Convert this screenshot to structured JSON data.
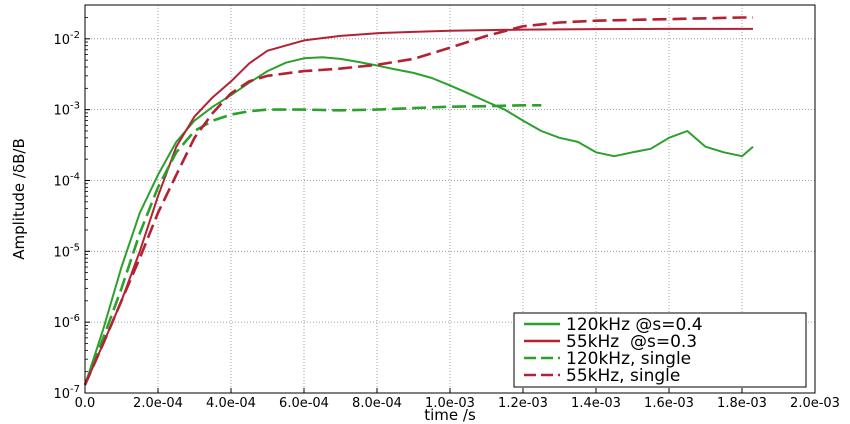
{
  "chart_data": {
    "type": "line",
    "xlabel": "time /s",
    "ylabel": "Amplitude /δB/B",
    "xlim": [
      0.0,
      0.002
    ],
    "ylim": [
      1e-07,
      0.03
    ],
    "yscale": "log",
    "grid": true,
    "legend_position": "bottom-right",
    "x_ticks": [
      "0.0",
      "2.0e-04",
      "4.0e-04",
      "6.0e-04",
      "8.0e-04",
      "1.0e-03",
      "1.2e-03",
      "1.4e-03",
      "1.6e-03",
      "1.8e-03",
      "2.0e-03"
    ],
    "x_tick_values": [
      0.0,
      0.0002,
      0.0004,
      0.0006,
      0.0008,
      0.001,
      0.0012,
      0.0014,
      0.0016,
      0.0018,
      0.002
    ],
    "y_ticks": [
      {
        "base": "10",
        "exp": "-7",
        "value": 1e-07
      },
      {
        "base": "10",
        "exp": "-6",
        "value": 1e-06
      },
      {
        "base": "10",
        "exp": "-5",
        "value": 1e-05
      },
      {
        "base": "10",
        "exp": "-4",
        "value": 0.0001
      },
      {
        "base": "10",
        "exp": "-3",
        "value": 0.001
      },
      {
        "base": "10",
        "exp": "-2",
        "value": 0.01
      }
    ],
    "series": [
      {
        "name": "120kHz @s=0.4",
        "color": "#2ca02c",
        "style": "solid",
        "x": [
          0.0,
          5e-05,
          0.0001,
          0.00015,
          0.0002,
          0.00025,
          0.0003,
          0.00035,
          0.0004,
          0.00045,
          0.0005,
          0.00055,
          0.0006,
          0.00065,
          0.0007,
          0.00075,
          0.0008,
          0.00085,
          0.0009,
          0.00095,
          0.001,
          0.00105,
          0.0011,
          0.00115,
          0.0012,
          0.00125,
          0.0013,
          0.00135,
          0.0014,
          0.00145,
          0.0015,
          0.00155,
          0.0016,
          0.00165,
          0.0017,
          0.00175,
          0.0018,
          0.00183
        ],
        "y": [
          1.3e-07,
          8e-07,
          6e-06,
          3.5e-05,
          0.00012,
          0.00035,
          0.0007,
          0.0011,
          0.0016,
          0.0024,
          0.0035,
          0.0046,
          0.0053,
          0.0055,
          0.0052,
          0.0047,
          0.0042,
          0.0037,
          0.0033,
          0.0028,
          0.0022,
          0.0017,
          0.0013,
          0.001,
          0.0007,
          0.0005,
          0.0004,
          0.00035,
          0.00025,
          0.00022,
          0.00025,
          0.00028,
          0.0004,
          0.0005,
          0.0003,
          0.00025,
          0.00022,
          0.0003
        ]
      },
      {
        "name": "55kHz  @s=0.3",
        "color": "#b22234",
        "style": "solid",
        "x": [
          0.0,
          5e-05,
          0.0001,
          0.00015,
          0.0002,
          0.00025,
          0.0003,
          0.00035,
          0.0004,
          0.00045,
          0.0005,
          0.0006,
          0.0007,
          0.0008,
          0.0009,
          0.001,
          0.0012,
          0.0014,
          0.0016,
          0.0018,
          0.00183
        ],
        "y": [
          1.3e-07,
          5e-07,
          2e-06,
          1e-05,
          6e-05,
          0.0003,
          0.0008,
          0.0015,
          0.0025,
          0.0045,
          0.0068,
          0.0095,
          0.011,
          0.012,
          0.0125,
          0.013,
          0.0135,
          0.0137,
          0.0138,
          0.0138,
          0.0138
        ]
      },
      {
        "name": "120kHz, single",
        "color": "#2ca02c",
        "style": "dashed",
        "x": [
          0.0,
          5e-05,
          0.0001,
          0.00015,
          0.0002,
          0.00025,
          0.0003,
          0.00035,
          0.0004,
          0.00045,
          0.0005,
          0.0006,
          0.0007,
          0.0008,
          0.0009,
          0.001,
          0.0011,
          0.0012,
          0.00125
        ],
        "y": [
          1.3e-07,
          6e-07,
          3e-06,
          1.8e-05,
          8e-05,
          0.00025,
          0.0005,
          0.0007,
          0.00085,
          0.00095,
          0.001,
          0.001,
          0.00098,
          0.001,
          0.00105,
          0.0011,
          0.00112,
          0.00115,
          0.00115
        ]
      },
      {
        "name": "55kHz, single",
        "color": "#b22234",
        "style": "dashed",
        "x": [
          0.0,
          5e-05,
          0.0001,
          0.00015,
          0.0002,
          0.00025,
          0.0003,
          0.00035,
          0.0004,
          0.00045,
          0.0005,
          0.0006,
          0.0007,
          0.0008,
          0.0009,
          0.001,
          0.0011,
          0.0012,
          0.0013,
          0.0014,
          0.0016,
          0.0018,
          0.00183
        ],
        "y": [
          1.3e-07,
          5e-07,
          2e-06,
          8e-06,
          3.5e-05,
          0.00012,
          0.0004,
          0.0009,
          0.0017,
          0.0025,
          0.003,
          0.0035,
          0.0038,
          0.0043,
          0.0052,
          0.0075,
          0.011,
          0.015,
          0.017,
          0.018,
          0.019,
          0.02,
          0.02
        ]
      }
    ]
  }
}
